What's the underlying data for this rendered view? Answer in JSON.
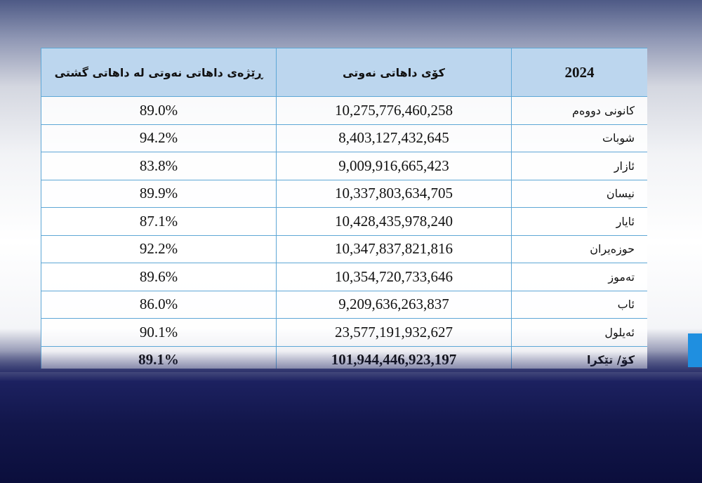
{
  "table": {
    "header": [
      "2024",
      "کۆی داهاتی نەوتی",
      "ڕێژەی داهاتی نەوتی لە داهاتی گشتی"
    ],
    "rows": [
      [
        "کانونی دووەم",
        "10,275,776,460,258",
        "89.0%"
      ],
      [
        "شوبات",
        "8,403,127,432,645",
        "94.2%"
      ],
      [
        "ئازار",
        "9,009,916,665,423",
        "83.8%"
      ],
      [
        "نیسان",
        "10,337,803,634,705",
        "89.9%"
      ],
      [
        "ئایار",
        "10,428,435,978,240",
        "87.1%"
      ],
      [
        "حوزەیران",
        "10,347,837,821,816",
        "92.2%"
      ],
      [
        "تەموز",
        "10,354,720,733,646",
        "89.6%"
      ],
      [
        "ئاب",
        "9,209,636,263,837",
        "86.0%"
      ],
      [
        "ئەیلول",
        "23,577,191,932,627",
        "90.1%"
      ],
      [
        "کۆ/ تێکرا",
        "101,944,446,923,197",
        "89.1%"
      ]
    ]
  }
}
